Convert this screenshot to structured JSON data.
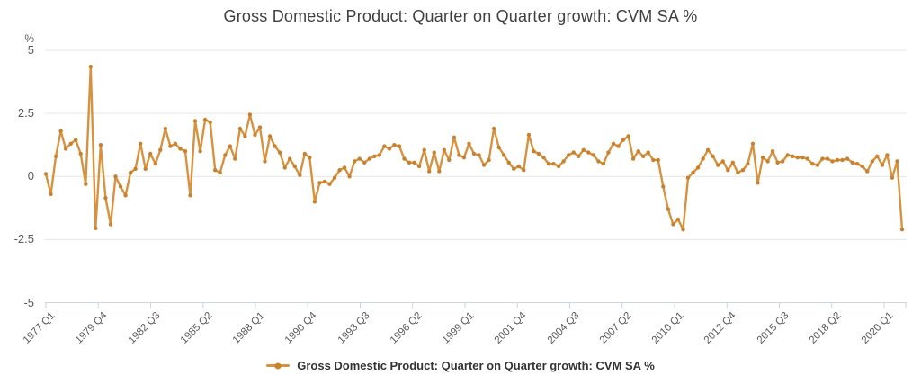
{
  "header": {
    "title": "Gross Domestic Product: Quarter on Quarter growth: CVM SA %"
  },
  "legend": {
    "label": "Gross Domestic Product: Quarter on Quarter growth: CVM SA %",
    "position": "bottom"
  },
  "colors": {
    "line": "#d8923f",
    "marker": "#c9812c",
    "grid": "#e6e6e6",
    "axis": "#ccd4dd",
    "title_text": "#404040",
    "label_text": "#595959",
    "legend_text": "#333333"
  },
  "chart_data": {
    "type": "line",
    "title": "Gross Domestic Product: Quarter on Quarter growth: CVM SA %",
    "series_name": "Gross Domestic Product: Quarter on Quarter growth: CVM SA %",
    "xlabel": "",
    "ylabel": "%",
    "unit": "%",
    "ylim": [
      -5,
      5
    ],
    "y_ticks": [
      5,
      2.5,
      0,
      -2.5,
      -5
    ],
    "grid": true,
    "legend_position": "bottom",
    "x_start": "1977 Q1",
    "x_end": "2020 Q1",
    "frequency": "quarterly",
    "x_tick_labels": [
      "1977 Q1",
      "1979 Q4",
      "1982 Q3",
      "1985 Q2",
      "1988 Q1",
      "1990 Q4",
      "1993 Q3",
      "1996 Q2",
      "1999 Q1",
      "2001 Q4",
      "2004 Q3",
      "2007 Q2",
      "2010 Q1",
      "2012 Q4",
      "2015 Q3",
      "2018 Q2",
      "2020 Q1"
    ],
    "values": [
      0.1,
      -0.7,
      0.8,
      1.8,
      1.1,
      1.3,
      1.45,
      0.9,
      -0.3,
      4.35,
      -2.05,
      1.25,
      -0.85,
      -1.9,
      0.0,
      -0.4,
      -0.75,
      0.15,
      0.3,
      1.3,
      0.3,
      0.9,
      0.5,
      1.05,
      1.9,
      1.2,
      1.3,
      1.1,
      1.0,
      -0.75,
      2.2,
      1.0,
      2.25,
      2.15,
      0.25,
      0.15,
      0.85,
      1.2,
      0.7,
      1.9,
      1.6,
      2.45,
      1.65,
      1.95,
      0.6,
      1.6,
      1.2,
      0.95,
      0.35,
      0.7,
      0.4,
      0.05,
      0.9,
      0.75,
      -1.0,
      -0.25,
      -0.2,
      -0.3,
      -0.05,
      0.25,
      0.35,
      0.0,
      0.6,
      0.7,
      0.55,
      0.7,
      0.8,
      0.85,
      1.2,
      1.1,
      1.25,
      1.2,
      0.7,
      0.55,
      0.55,
      0.4,
      1.05,
      0.2,
      0.95,
      0.2,
      1.05,
      0.65,
      1.55,
      0.85,
      0.75,
      1.3,
      0.9,
      0.85,
      0.45,
      0.65,
      1.9,
      1.15,
      0.85,
      0.55,
      0.3,
      0.4,
      0.25,
      1.65,
      1.0,
      0.9,
      0.75,
      0.5,
      0.5,
      0.4,
      0.6,
      0.85,
      0.95,
      0.8,
      1.05,
      0.95,
      0.85,
      0.6,
      0.5,
      0.95,
      1.3,
      1.2,
      1.45,
      1.6,
      0.7,
      1.0,
      0.8,
      0.95,
      0.65,
      0.65,
      -0.4,
      -1.3,
      -1.9,
      -1.7,
      -2.1,
      -0.05,
      0.15,
      0.35,
      0.7,
      1.05,
      0.8,
      0.45,
      0.6,
      0.25,
      0.55,
      0.15,
      0.25,
      0.5,
      1.3,
      -0.25,
      0.75,
      0.6,
      1.0,
      0.55,
      0.6,
      0.85,
      0.8,
      0.75,
      0.75,
      0.7,
      0.5,
      0.45,
      0.7,
      0.7,
      0.6,
      0.65,
      0.65,
      0.7,
      0.55,
      0.5,
      0.4,
      0.2,
      0.6,
      0.8,
      0.45,
      0.85,
      -0.05,
      0.6,
      -2.1
    ]
  }
}
